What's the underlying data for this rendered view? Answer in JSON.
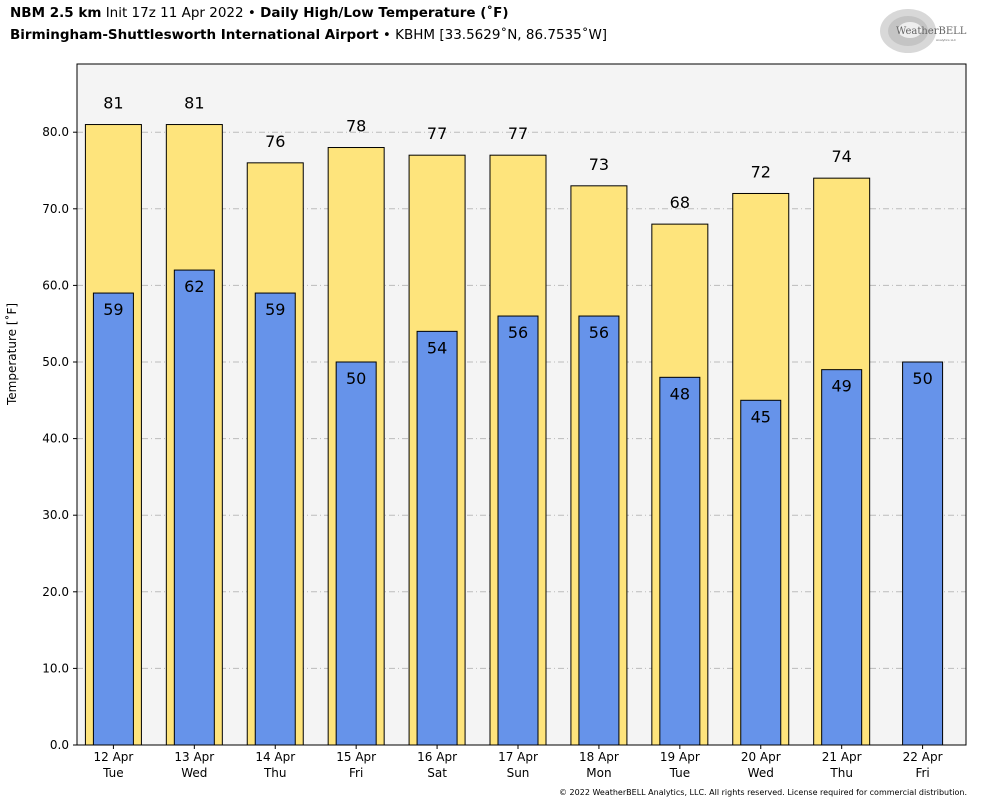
{
  "header": {
    "model": "NBM 2.5 km",
    "init": "Init 17z 11 Apr 2022",
    "bullet": "•",
    "title": "Daily High/Low Temperature (˚F)",
    "station_name": "Birmingham-Shuttlesworth International Airport",
    "station_info": "KBHM [33.5629˚N, 86.7535˚W]"
  },
  "logo": {
    "text": "WeatherBELL",
    "sub": "Analytics LLC"
  },
  "footer": "© 2022 WeatherBELL Analytics, LLC. All rights reserved. License required for commercial distribution.",
  "colors": {
    "high": "#fee47c",
    "low": "#6693ea",
    "plot_bg": "#f4f4f4",
    "grid": "#bbbbbb"
  },
  "chart_data": {
    "type": "bar",
    "ylabel": "Temperature [˚F]",
    "ylim": [
      0,
      89
    ],
    "yticks": [
      "0.0",
      "10.0",
      "20.0",
      "30.0",
      "40.0",
      "50.0",
      "60.0",
      "70.0",
      "80.0"
    ],
    "grid": true,
    "categories": [
      {
        "date": "12 Apr",
        "day": "Tue"
      },
      {
        "date": "13 Apr",
        "day": "Wed"
      },
      {
        "date": "14 Apr",
        "day": "Thu"
      },
      {
        "date": "15 Apr",
        "day": "Fri"
      },
      {
        "date": "16 Apr",
        "day": "Sat"
      },
      {
        "date": "17 Apr",
        "day": "Sun"
      },
      {
        "date": "18 Apr",
        "day": "Mon"
      },
      {
        "date": "19 Apr",
        "day": "Tue"
      },
      {
        "date": "20 Apr",
        "day": "Wed"
      },
      {
        "date": "21 Apr",
        "day": "Thu"
      },
      {
        "date": "22 Apr",
        "day": "Fri"
      }
    ],
    "series": [
      {
        "key": "high",
        "values": [
          81,
          81,
          76,
          78,
          77,
          77,
          73,
          68,
          72,
          74,
          null
        ],
        "labels": [
          "81",
          "81",
          "76",
          "78",
          "77",
          "77",
          "73",
          "68",
          "72",
          "74",
          ""
        ]
      },
      {
        "key": "low",
        "values": [
          59,
          62,
          59,
          50,
          54,
          56,
          56,
          48,
          45,
          49,
          50
        ],
        "labels": [
          "59",
          "62",
          "59",
          "50",
          "54",
          "56",
          "56",
          "48",
          "45",
          "49",
          "50"
        ]
      }
    ]
  }
}
